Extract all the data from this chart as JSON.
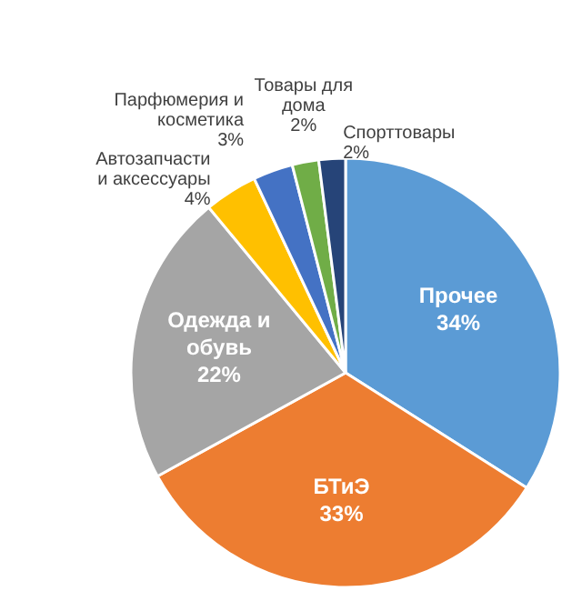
{
  "chart_data": {
    "type": "pie",
    "categories": [
      "Прочее",
      "БТиЭ",
      "Одежда и обувь",
      "Автозапчасти и аксессуары",
      "Парфюмерия и косметика",
      "Товары для дома",
      "Спорттовары"
    ],
    "values": [
      34,
      33,
      22,
      4,
      3,
      2,
      2
    ],
    "value_labels": [
      "34%",
      "33%",
      "22%",
      "4%",
      "3%",
      "2%",
      "2%"
    ],
    "colors": [
      "#5b9bd5",
      "#ed7d31",
      "#a5a5a5",
      "#ffc000",
      "#4472c4",
      "#70ad47",
      "#264478"
    ],
    "legend": false
  }
}
